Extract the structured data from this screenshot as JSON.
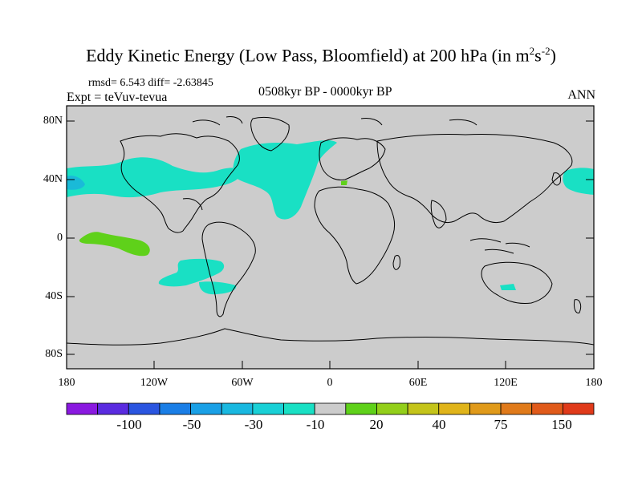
{
  "title": {
    "main": "Eddy Kinetic Energy (Low Pass, Bloomfield) at 200 hPa (in m",
    "sup1": "2",
    "mid": "s",
    "sup2": "-2",
    "end": ")"
  },
  "stats_line": "rmsd= 6.543  diff= -2.63845",
  "experiment": "Expt = teVuv-tevua",
  "period": "0508kyr BP - 0000kyr BP",
  "season": "ANN",
  "lat_labels": [
    "80N",
    "40N",
    "0",
    "40S",
    "80S"
  ],
  "lon_labels": [
    "180",
    "120W",
    "60W",
    "0",
    "60E",
    "120E",
    "180"
  ],
  "colorbar": {
    "colors": [
      "#8a19e0",
      "#5a2be0",
      "#2a55e0",
      "#1a7ee6",
      "#1aa0e6",
      "#19b8e0",
      "#19d0d6",
      "#19e0c4",
      "#cccccc",
      "#5fd11a",
      "#93cf1a",
      "#c4c41a",
      "#e0b41a",
      "#e09a1a",
      "#e07a1a",
      "#e05a1a",
      "#e03a1a"
    ],
    "labels": [
      "-100",
      "-50",
      "-30",
      "-10",
      "20",
      "40",
      "75",
      "150"
    ]
  },
  "region_colors": {
    "ocean_land": "#cccccc",
    "cyan": "#19e0c4",
    "green": "#5fd11a",
    "coast": "#000000"
  }
}
